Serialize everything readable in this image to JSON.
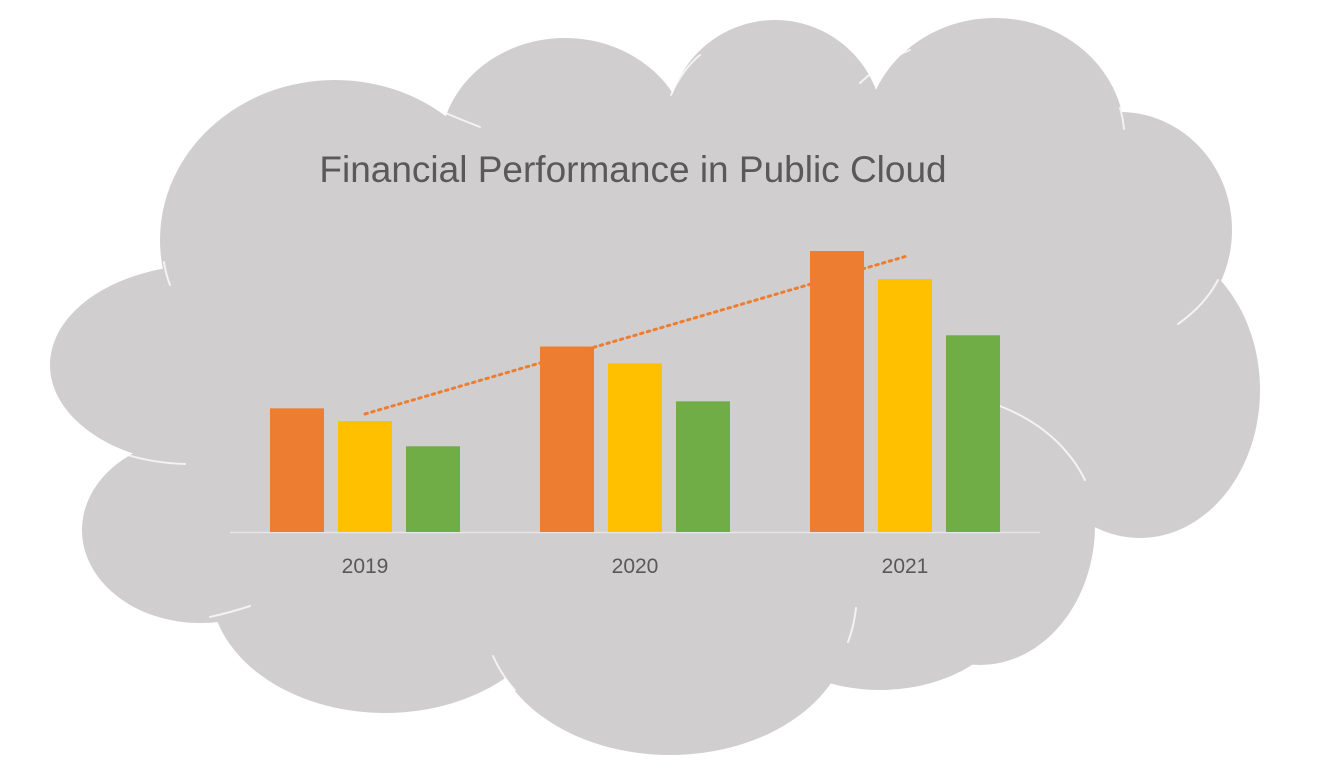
{
  "colors": {
    "cloud": "#d0cecf",
    "cloud_edge": "#ffffff",
    "text": "#595959",
    "axis": "#e7e6e6"
  },
  "chart_data": {
    "type": "bar",
    "title": "Financial Performance  in Public Cloud",
    "xlabel": "",
    "ylabel": "",
    "categories": [
      "2019",
      "2020",
      "2021"
    ],
    "series": [
      {
        "color": "#ed7d31",
        "values": [
          4.4,
          6.6,
          10.0
        ]
      },
      {
        "color": "#ffc000",
        "values": [
          3.95,
          6.0,
          9.0
        ]
      },
      {
        "color": "#70ad47",
        "values": [
          3.05,
          4.65,
          7.0
        ]
      }
    ],
    "ylim": [
      0,
      10
    ],
    "grid": false,
    "legend": "none",
    "trendline": {
      "series_index": 0,
      "type": "linear",
      "style": "dotted",
      "color": "#ed7d31"
    }
  }
}
